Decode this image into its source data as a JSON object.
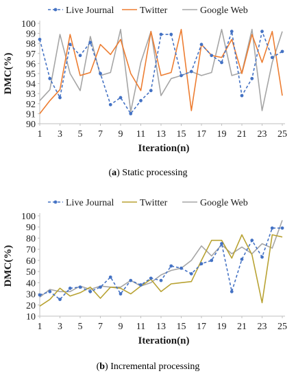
{
  "chart_data": [
    {
      "type": "line",
      "caption_prefix": "a",
      "caption_text": " Static processing",
      "xlabel": "Iteration(n)",
      "ylabel": "DMC(%)",
      "x": [
        1,
        2,
        3,
        4,
        5,
        6,
        7,
        8,
        9,
        10,
        11,
        12,
        13,
        14,
        15,
        16,
        17,
        18,
        19,
        20,
        21,
        22,
        23,
        24,
        25
      ],
      "xticks": [
        1,
        3,
        5,
        7,
        9,
        11,
        13,
        15,
        17,
        19,
        21,
        23,
        25
      ],
      "ylim": [
        90,
        100
      ],
      "yticks": [
        90,
        91,
        92,
        93,
        94,
        95,
        96,
        97,
        98,
        99,
        100
      ],
      "series": [
        {
          "name": "Live Journal",
          "color": "#4472c4",
          "dash": true,
          "marker": true,
          "values": [
            98.4,
            94.5,
            92.6,
            97.9,
            96.8,
            98.1,
            95.0,
            91.9,
            92.6,
            91.0,
            92.3,
            93.3,
            98.9,
            98.9,
            94.8,
            95.2,
            97.9,
            96.8,
            96.1,
            99.2,
            92.8,
            94.5,
            99.2,
            96.6,
            97.2
          ]
        },
        {
          "name": "Twitter",
          "color": "#ed7d31",
          "dash": false,
          "marker": false,
          "values": [
            91.0,
            92.3,
            93.4,
            98.9,
            94.8,
            95.1,
            97.9,
            96.9,
            98.4,
            95.0,
            93.3,
            99.2,
            94.8,
            95.1,
            99.4,
            91.3,
            97.9,
            96.8,
            96.6,
            98.4,
            95.0,
            98.9,
            96.1,
            99.2,
            92.8
          ]
        },
        {
          "name": "Google Web",
          "color": "#a5a5a5",
          "dash": false,
          "marker": false,
          "values": [
            92.3,
            93.4,
            98.9,
            95.0,
            93.3,
            98.7,
            94.8,
            95.1,
            99.4,
            91.2,
            96.1,
            99.2,
            92.8,
            94.5,
            94.8,
            95.2,
            94.8,
            95.1,
            99.4,
            94.8,
            95.1,
            99.4,
            91.3,
            96.1,
            99.2
          ]
        }
      ]
    },
    {
      "type": "line",
      "caption_prefix": "b",
      "caption_text": " Incremental processing",
      "xlabel": "Iteration(n)",
      "ylabel": "DMC(%)",
      "x": [
        1,
        2,
        3,
        4,
        5,
        6,
        7,
        8,
        9,
        10,
        11,
        12,
        13,
        14,
        15,
        16,
        17,
        18,
        19,
        20,
        21,
        22,
        23,
        24,
        25
      ],
      "xticks": [
        1,
        3,
        5,
        7,
        9,
        11,
        13,
        15,
        17,
        19,
        21,
        23,
        25
      ],
      "ylim": [
        10,
        100
      ],
      "yticks": [
        10,
        20,
        30,
        40,
        50,
        60,
        70,
        80,
        90,
        100
      ],
      "series": [
        {
          "name": "Live Journal",
          "color": "#4472c4",
          "dash": true,
          "marker": true,
          "values": [
            29,
            32,
            25,
            35,
            36,
            32,
            36,
            45,
            30,
            42,
            38,
            44,
            42,
            55,
            53,
            48,
            57,
            60,
            75,
            32,
            61,
            78,
            63,
            89,
            89
          ]
        },
        {
          "name": "Twitter",
          "color": "#b8a232",
          "dash": false,
          "marker": false,
          "values": [
            19,
            25,
            35,
            28,
            31,
            36,
            26,
            36,
            35,
            30,
            37,
            43,
            32,
            39,
            40,
            41,
            60,
            78,
            78,
            62,
            83,
            65,
            22,
            83,
            81
          ]
        },
        {
          "name": "Google Web",
          "color": "#a5a5a5",
          "dash": false,
          "marker": false,
          "values": [
            27,
            34,
            32,
            32,
            37,
            34,
            37,
            36,
            36,
            42,
            37,
            40,
            47,
            51,
            53,
            60,
            73,
            64,
            74,
            66,
            72,
            66,
            75,
            71,
            96
          ]
        }
      ]
    }
  ]
}
